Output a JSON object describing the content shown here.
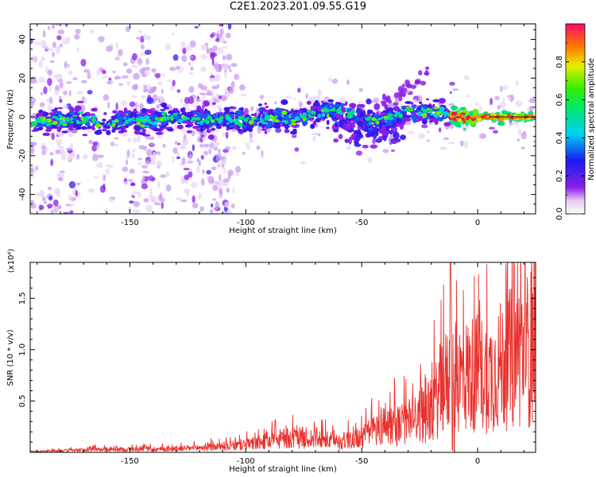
{
  "title": "C2E1.2023.201.09.55.G19",
  "chart_data": [
    {
      "type": "heatmap",
      "xlabel": "Height of straight line (km)",
      "ylabel": "Frequency (Hz)",
      "xlim": [
        -193,
        25
      ],
      "ylim": [
        -50,
        48
      ],
      "xticks": [
        -150,
        -100,
        -50,
        0
      ],
      "xtick_labels": [
        "-150",
        "-100",
        "-50",
        "0"
      ],
      "yticks": [
        -40,
        -20,
        0,
        20,
        40
      ],
      "ytick_labels": [
        "-40",
        "-20",
        "0",
        "20",
        "40"
      ],
      "colorbar": {
        "label": "Normalized spectral amplitude",
        "range": [
          0.0,
          1.0
        ],
        "ticks": [
          0.0,
          0.2,
          0.4,
          0.6,
          0.8
        ],
        "tick_labels": [
          "0.0",
          "0.2",
          "0.4",
          "0.6",
          "0.8"
        ]
      },
      "ridge": [
        {
          "x": -193,
          "y": -3
        },
        {
          "x": -170,
          "y": -1
        },
        {
          "x": -160,
          "y": -3
        },
        {
          "x": -150,
          "y": -2
        },
        {
          "x": -140,
          "y": -2
        },
        {
          "x": -130,
          "y": 0
        },
        {
          "x": -120,
          "y": -1
        },
        {
          "x": -100,
          "y": -2
        },
        {
          "x": -90,
          "y": -1
        },
        {
          "x": -80,
          "y": -1
        },
        {
          "x": -70,
          "y": 1
        },
        {
          "x": -60,
          "y": 4
        },
        {
          "x": -50,
          "y": -2
        },
        {
          "x": -40,
          "y": -2
        },
        {
          "x": -30,
          "y": 3
        },
        {
          "x": -20,
          "y": 3
        },
        {
          "x": -10,
          "y": 0
        },
        {
          "x": 0,
          "y": 0
        },
        {
          "x": 10,
          "y": 0
        },
        {
          "x": 25,
          "y": 0
        }
      ],
      "grid": false
    },
    {
      "type": "line",
      "xlabel": "Height of straight line (km)",
      "ylabel": "SNR (10 * v/v)",
      "y_multiplier": "(x10⁴)",
      "xlim": [
        -193,
        25
      ],
      "ylim": [
        0,
        1.85
      ],
      "xticks": [
        -150,
        -100,
        -50,
        0
      ],
      "xtick_labels": [
        "-150",
        "-100",
        "-50",
        "0"
      ],
      "yticks": [
        0.5,
        1.0,
        1.5
      ],
      "ytick_labels": [
        "0.5",
        "1.0",
        "1.5"
      ],
      "series": [
        {
          "color": "#e8312c",
          "x": [
            -193,
            -185,
            -175,
            -165,
            -155,
            -145,
            -135,
            -125,
            -115,
            -105,
            -95,
            -85,
            -75,
            -65,
            -60,
            -55,
            -50,
            -45,
            -40,
            -35,
            -30,
            -25,
            -20,
            -15,
            -10,
            -5,
            0,
            5,
            10,
            15,
            20,
            25
          ],
          "y": [
            0.01,
            0.02,
            0.03,
            0.04,
            0.04,
            0.05,
            0.05,
            0.06,
            0.08,
            0.1,
            0.14,
            0.2,
            0.22,
            0.18,
            0.16,
            0.2,
            0.22,
            0.32,
            0.45,
            0.4,
            0.45,
            0.55,
            0.62,
            1.02,
            1.1,
            1.15,
            1.2,
            1.15,
            1.3,
            1.42,
            1.52,
            1.6
          ]
        }
      ],
      "grid": false
    }
  ]
}
